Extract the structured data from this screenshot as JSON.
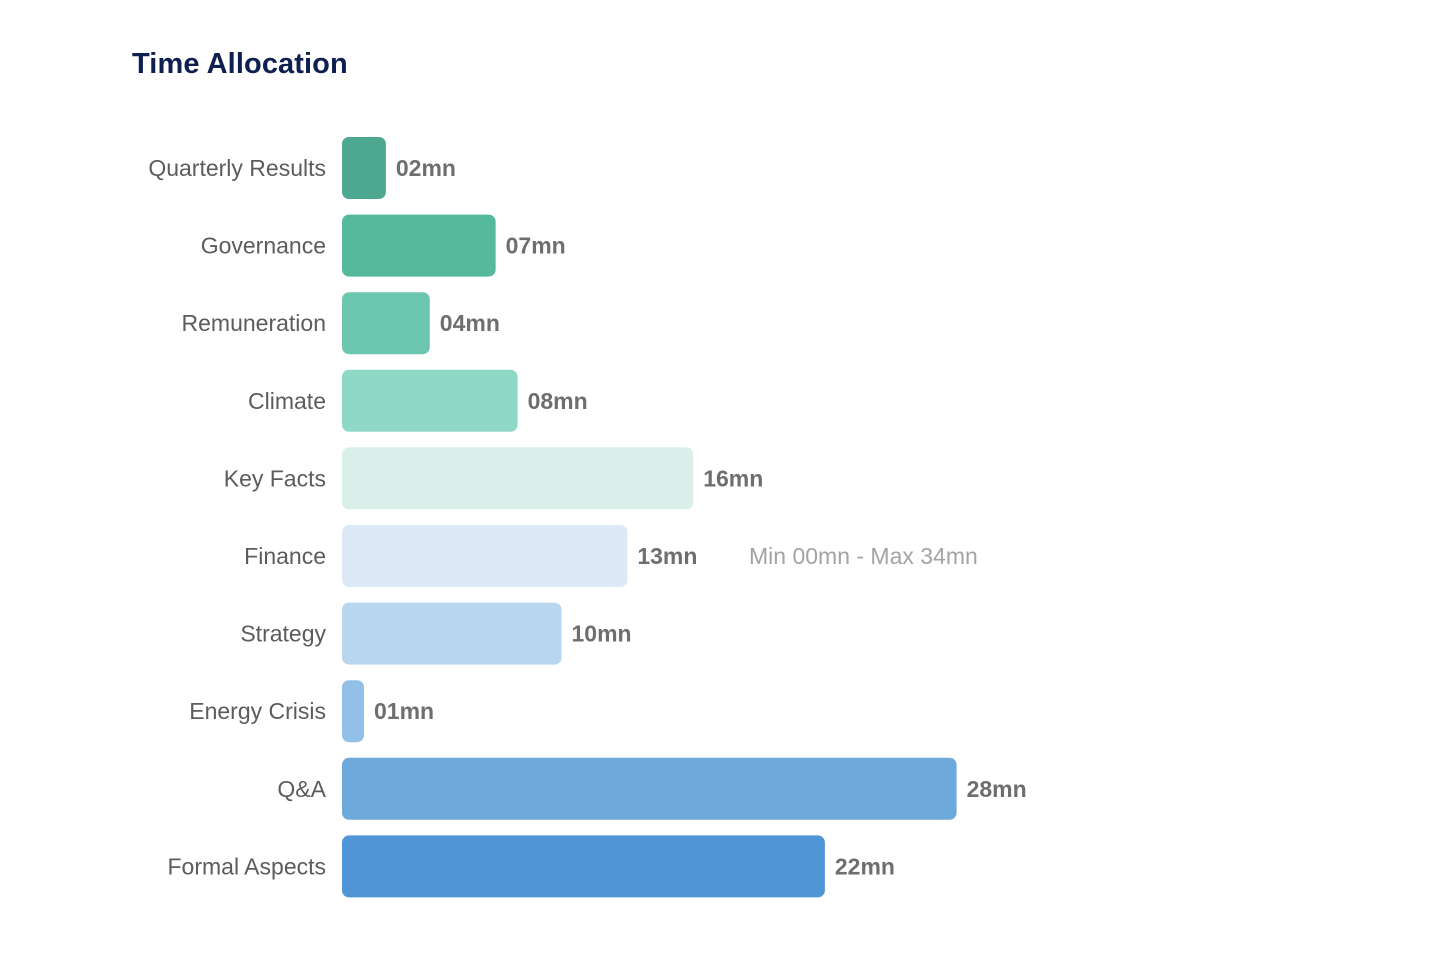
{
  "title": "Time Allocation",
  "chart_data": {
    "type": "bar",
    "orientation": "horizontal",
    "title": "Time Allocation",
    "xlabel": "",
    "ylabel": "",
    "unit": "mn",
    "grid": false,
    "legend": "none",
    "xlim": [
      0,
      28
    ],
    "categories": [
      "Quarterly Results",
      "Governance",
      "Remuneration",
      "Climate",
      "Key Facts",
      "Finance",
      "Strategy",
      "Energy Crisis",
      "Q&A",
      "Formal Aspects"
    ],
    "values": [
      2,
      7,
      4,
      8,
      16,
      13,
      10,
      1,
      28,
      22
    ],
    "value_labels": [
      "02mn",
      "07mn",
      "04mn",
      "08mn",
      "16mn",
      "13mn",
      "10mn",
      "01mn",
      "28mn",
      "22mn"
    ],
    "colors": [
      "#4da88f",
      "#55b99c",
      "#6dc6b0",
      "#8ed8c5",
      "#d9f0ea",
      "#dde9f5",
      "#b8d6ee",
      "#93c0e7",
      "#6ea9dc",
      "#5096d7"
    ],
    "range_note": {
      "category": "Finance",
      "text": "Min 00mn - Max 34mn"
    }
  }
}
